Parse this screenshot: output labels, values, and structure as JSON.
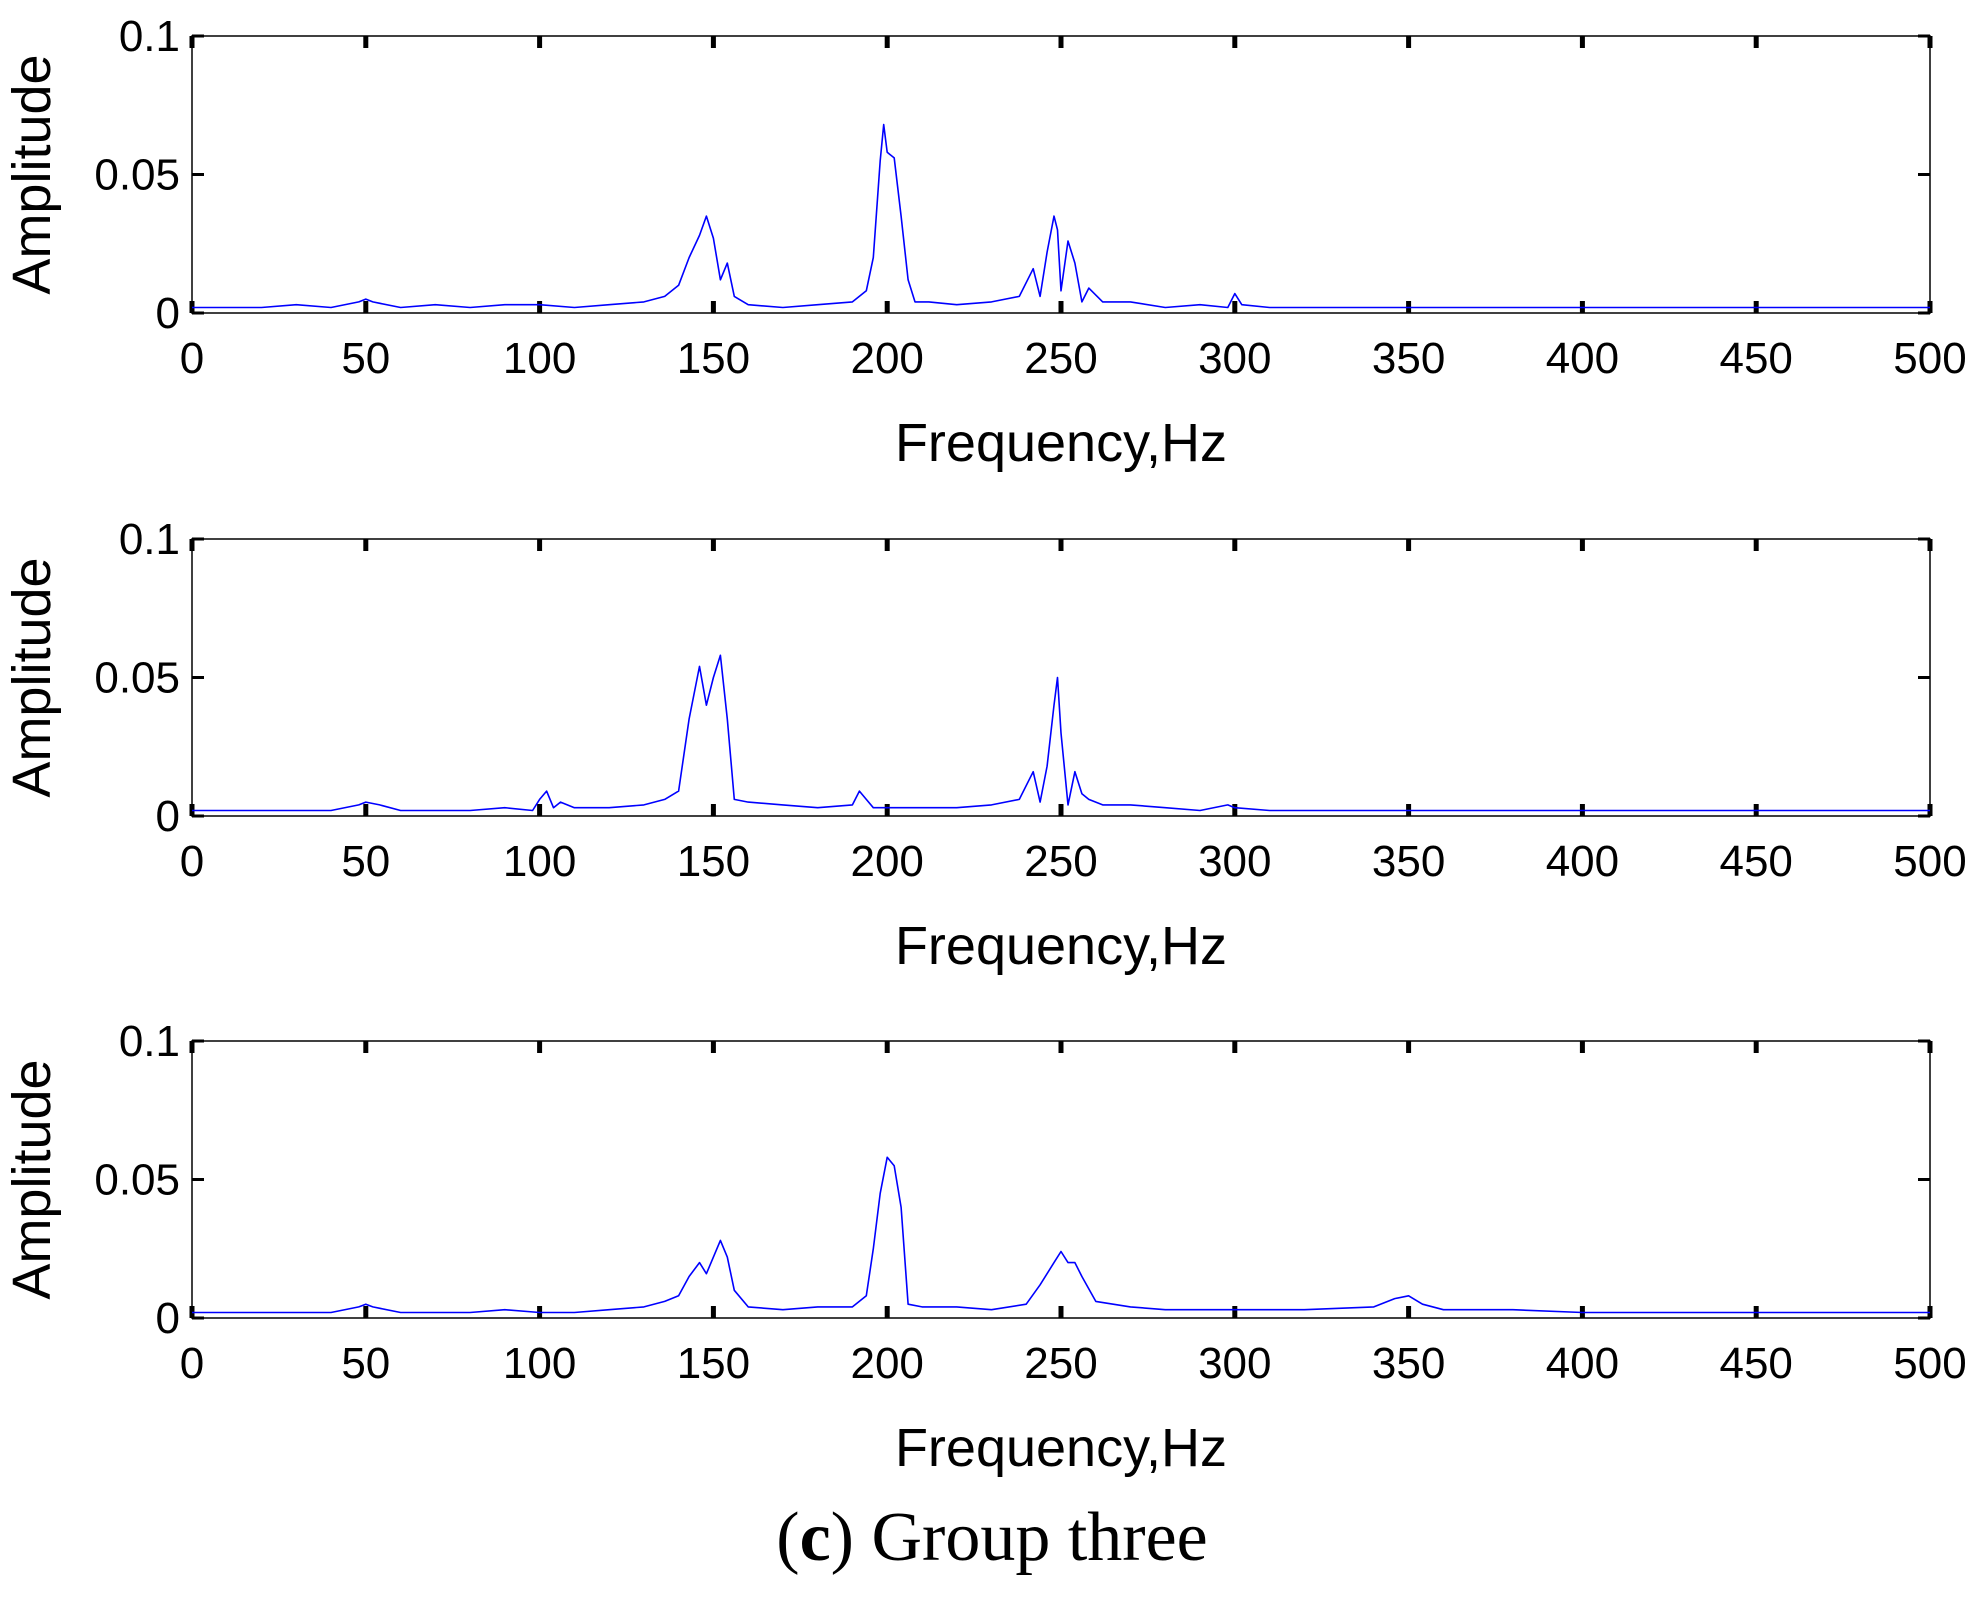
{
  "caption": {
    "open": "(",
    "letter": "c",
    "rest": ") Group three"
  },
  "colors": {
    "line": "#0000ff",
    "axes": "#000000"
  },
  "chart_data": [
    {
      "type": "line",
      "title": "",
      "xlabel": "Frequency,Hz",
      "ylabel": "Amplitude",
      "xlim": [
        0,
        500
      ],
      "ylim": [
        0,
        0.1
      ],
      "xticks": [
        0,
        50,
        100,
        150,
        200,
        250,
        300,
        350,
        400,
        450,
        500
      ],
      "yticks": [
        0,
        0.05,
        0.1
      ],
      "ytick_labels": [
        "0",
        "0.05",
        "0.1"
      ],
      "grid": false,
      "series": [
        {
          "x": [
            0,
            10,
            20,
            30,
            40,
            48,
            50,
            52,
            60,
            70,
            80,
            90,
            100,
            110,
            120,
            130,
            136,
            140,
            143,
            146,
            148,
            150,
            152,
            154,
            156,
            160,
            170,
            180,
            190,
            194,
            196,
            198,
            199,
            200,
            202,
            204,
            206,
            208,
            212,
            220,
            230,
            238,
            242,
            244,
            246,
            248,
            249,
            250,
            252,
            254,
            256,
            258,
            262,
            270,
            280,
            290,
            298,
            300,
            302,
            310,
            330,
            350,
            380,
            400,
            420,
            450,
            480,
            500
          ],
          "y": [
            0.002,
            0.002,
            0.002,
            0.003,
            0.002,
            0.004,
            0.005,
            0.004,
            0.002,
            0.003,
            0.002,
            0.003,
            0.003,
            0.002,
            0.003,
            0.004,
            0.006,
            0.01,
            0.02,
            0.028,
            0.035,
            0.027,
            0.012,
            0.018,
            0.006,
            0.003,
            0.002,
            0.003,
            0.004,
            0.008,
            0.02,
            0.055,
            0.068,
            0.058,
            0.056,
            0.035,
            0.012,
            0.004,
            0.004,
            0.003,
            0.004,
            0.006,
            0.016,
            0.006,
            0.022,
            0.035,
            0.03,
            0.008,
            0.026,
            0.018,
            0.004,
            0.009,
            0.004,
            0.004,
            0.002,
            0.003,
            0.002,
            0.007,
            0.003,
            0.002,
            0.002,
            0.002,
            0.002,
            0.002,
            0.002,
            0.002,
            0.002,
            0.002
          ]
        }
      ]
    },
    {
      "type": "line",
      "title": "",
      "xlabel": "Frequency,Hz",
      "ylabel": "Amplitude",
      "xlim": [
        0,
        500
      ],
      "ylim": [
        0,
        0.1
      ],
      "xticks": [
        0,
        50,
        100,
        150,
        200,
        250,
        300,
        350,
        400,
        450,
        500
      ],
      "yticks": [
        0,
        0.05,
        0.1
      ],
      "ytick_labels": [
        "0",
        "0.05",
        "0.1"
      ],
      "grid": false,
      "series": [
        {
          "x": [
            0,
            10,
            20,
            30,
            40,
            48,
            50,
            54,
            60,
            70,
            80,
            90,
            98,
            100,
            102,
            104,
            106,
            110,
            120,
            130,
            136,
            140,
            143,
            146,
            148,
            150,
            152,
            154,
            156,
            160,
            170,
            180,
            190,
            192,
            194,
            196,
            200,
            210,
            220,
            230,
            238,
            242,
            244,
            246,
            248,
            249,
            250,
            252,
            254,
            256,
            258,
            262,
            270,
            280,
            290,
            298,
            300,
            310,
            330,
            350,
            380,
            400,
            420,
            450,
            480,
            500
          ],
          "y": [
            0.002,
            0.002,
            0.002,
            0.002,
            0.002,
            0.004,
            0.005,
            0.004,
            0.002,
            0.002,
            0.002,
            0.003,
            0.002,
            0.006,
            0.009,
            0.003,
            0.005,
            0.003,
            0.003,
            0.004,
            0.006,
            0.009,
            0.035,
            0.054,
            0.04,
            0.05,
            0.058,
            0.035,
            0.006,
            0.005,
            0.004,
            0.003,
            0.004,
            0.009,
            0.006,
            0.003,
            0.003,
            0.003,
            0.003,
            0.004,
            0.006,
            0.016,
            0.005,
            0.018,
            0.04,
            0.05,
            0.03,
            0.004,
            0.016,
            0.008,
            0.006,
            0.004,
            0.004,
            0.003,
            0.002,
            0.004,
            0.003,
            0.002,
            0.002,
            0.002,
            0.002,
            0.002,
            0.002,
            0.002,
            0.002,
            0.002
          ]
        }
      ]
    },
    {
      "type": "line",
      "title": "",
      "xlabel": "Frequency,Hz",
      "ylabel": "Amplitude",
      "xlim": [
        0,
        500
      ],
      "ylim": [
        0,
        0.1
      ],
      "xticks": [
        0,
        50,
        100,
        150,
        200,
        250,
        300,
        350,
        400,
        450,
        500
      ],
      "yticks": [
        0,
        0.05,
        0.1
      ],
      "ytick_labels": [
        "0",
        "0.05",
        "0.1"
      ],
      "grid": false,
      "series": [
        {
          "x": [
            0,
            10,
            20,
            30,
            40,
            48,
            50,
            52,
            60,
            70,
            80,
            90,
            100,
            110,
            120,
            130,
            136,
            140,
            143,
            146,
            148,
            150,
            152,
            154,
            156,
            160,
            170,
            180,
            190,
            194,
            196,
            198,
            200,
            202,
            204,
            206,
            210,
            220,
            230,
            240,
            244,
            248,
            250,
            252,
            254,
            256,
            260,
            270,
            280,
            290,
            300,
            320,
            340,
            346,
            350,
            354,
            360,
            380,
            400,
            420,
            450,
            480,
            500
          ],
          "y": [
            0.002,
            0.002,
            0.002,
            0.002,
            0.002,
            0.004,
            0.005,
            0.004,
            0.002,
            0.002,
            0.002,
            0.003,
            0.002,
            0.002,
            0.003,
            0.004,
            0.006,
            0.008,
            0.015,
            0.02,
            0.016,
            0.022,
            0.028,
            0.022,
            0.01,
            0.004,
            0.003,
            0.004,
            0.004,
            0.008,
            0.025,
            0.045,
            0.058,
            0.055,
            0.04,
            0.005,
            0.004,
            0.004,
            0.003,
            0.005,
            0.012,
            0.02,
            0.024,
            0.02,
            0.02,
            0.015,
            0.006,
            0.004,
            0.003,
            0.003,
            0.003,
            0.003,
            0.004,
            0.007,
            0.008,
            0.005,
            0.003,
            0.003,
            0.002,
            0.002,
            0.002,
            0.002,
            0.002
          ]
        }
      ]
    }
  ]
}
